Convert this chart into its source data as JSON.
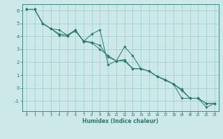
{
  "title": "",
  "xlabel": "Humidex (Indice chaleur)",
  "bg_color": "#cce8e8",
  "grid_color": "#99cccc",
  "line_color": "#2a7a6a",
  "marker_color": "#2a7a6a",
  "xlim": [
    -0.5,
    23.5
  ],
  "ylim": [
    -1.8,
    6.5
  ],
  "yticks": [
    -1,
    0,
    1,
    2,
    3,
    4,
    5,
    6
  ],
  "xticks": [
    0,
    1,
    2,
    3,
    4,
    5,
    6,
    7,
    8,
    9,
    10,
    11,
    12,
    13,
    14,
    15,
    16,
    17,
    18,
    19,
    20,
    21,
    22,
    23
  ],
  "series": [
    {
      "x": [
        0,
        1,
        2,
        3,
        4,
        5,
        6,
        7,
        8,
        9,
        10,
        11,
        12,
        13,
        14,
        15,
        16,
        17,
        18,
        19,
        20,
        21,
        22,
        23
      ],
      "y": [
        6.1,
        6.1,
        5.0,
        4.6,
        4.5,
        4.1,
        4.5,
        3.6,
        4.2,
        4.5,
        1.8,
        2.1,
        3.2,
        2.5,
        1.5,
        1.3,
        0.9,
        0.6,
        0.3,
        -0.8,
        -0.8,
        -0.8,
        -1.5,
        -1.2
      ]
    },
    {
      "x": [
        0,
        1,
        2,
        3,
        4,
        5,
        6,
        7,
        8,
        9,
        10,
        11,
        12,
        13,
        14,
        15,
        16,
        17,
        18,
        19,
        20,
        21,
        22,
        23
      ],
      "y": [
        6.1,
        6.1,
        5.0,
        4.6,
        4.1,
        4.0,
        4.5,
        3.6,
        3.5,
        3.0,
        2.5,
        2.1,
        2.2,
        1.5,
        1.5,
        1.3,
        0.9,
        0.6,
        0.3,
        -0.2,
        -0.8,
        -0.8,
        -1.2,
        -1.2
      ]
    },
    {
      "x": [
        0,
        1,
        2,
        3,
        4,
        5,
        6,
        7,
        8,
        9,
        10,
        11,
        12,
        13,
        14,
        15,
        16,
        17,
        18,
        19,
        20,
        21,
        22,
        23
      ],
      "y": [
        6.1,
        6.1,
        5.0,
        4.6,
        4.2,
        4.1,
        4.4,
        3.65,
        3.55,
        3.3,
        2.4,
        2.1,
        2.1,
        1.5,
        1.5,
        1.3,
        0.9,
        0.65,
        0.3,
        -0.1,
        -0.8,
        -0.8,
        -1.2,
        -1.2
      ]
    }
  ]
}
